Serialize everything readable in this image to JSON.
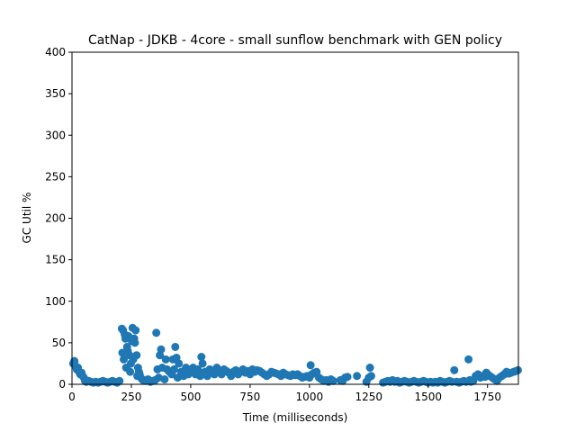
{
  "chart_data": {
    "type": "scatter",
    "title": "CatNap - JDKB - 4core -  small sunflow benchmark with GEN policy",
    "xlabel": "Time (milliseconds)",
    "ylabel": "GC Util %",
    "xlim": [
      0,
      1880
    ],
    "ylim": [
      0,
      400
    ],
    "xticks": [
      0,
      250,
      500,
      750,
      1000,
      1250,
      1500,
      1750
    ],
    "yticks": [
      0,
      50,
      100,
      150,
      200,
      250,
      300,
      350,
      400
    ],
    "grid": false,
    "legend": false,
    "marker_color": "#1f77b4",
    "series": [
      {
        "x": [
          5,
          10,
          15,
          20,
          25,
          30,
          35,
          40,
          45,
          50,
          55,
          60,
          70,
          80,
          90,
          100,
          110,
          120,
          130,
          140,
          150,
          160,
          170,
          180,
          190,
          200,
          210,
          212,
          215,
          218,
          222,
          225,
          228,
          232,
          235,
          238,
          242,
          245,
          248,
          252,
          255,
          258,
          262,
          265,
          268,
          272,
          275,
          278,
          282,
          285,
          290,
          295,
          300,
          310,
          320,
          330,
          340,
          350,
          355,
          360,
          365,
          370,
          375,
          380,
          390,
          395,
          400,
          410,
          420,
          425,
          430,
          435,
          440,
          445,
          450,
          460,
          470,
          480,
          490,
          500,
          510,
          520,
          530,
          540,
          545,
          550,
          560,
          570,
          580,
          590,
          600,
          610,
          620,
          630,
          640,
          650,
          660,
          670,
          680,
          690,
          700,
          710,
          720,
          730,
          740,
          750,
          760,
          770,
          780,
          790,
          800,
          810,
          820,
          830,
          840,
          850,
          860,
          870,
          880,
          890,
          900,
          910,
          920,
          930,
          940,
          950,
          960,
          970,
          980,
          990,
          1000,
          1005,
          1010,
          1020,
          1030,
          1040,
          1050,
          1060,
          1070,
          1080,
          1090,
          1100,
          1130,
          1140,
          1150,
          1160,
          1200,
          1240,
          1250,
          1255,
          1260,
          1310,
          1320,
          1330,
          1340,
          1350,
          1360,
          1370,
          1380,
          1390,
          1400,
          1410,
          1420,
          1430,
          1440,
          1450,
          1460,
          1470,
          1480,
          1490,
          1500,
          1510,
          1520,
          1530,
          1540,
          1550,
          1560,
          1570,
          1580,
          1590,
          1600,
          1610,
          1620,
          1630,
          1640,
          1650,
          1660,
          1670,
          1675,
          1680,
          1690,
          1700,
          1710,
          1720,
          1730,
          1740,
          1745,
          1750,
          1760,
          1770,
          1780,
          1790,
          1800,
          1810,
          1820,
          1830,
          1840,
          1850,
          1860,
          1870,
          1878
        ],
        "y": [
          25,
          28,
          22,
          18,
          20,
          15,
          12,
          14,
          10,
          8,
          4,
          3,
          4,
          3,
          2,
          3,
          2,
          3,
          4,
          3,
          2,
          3,
          4,
          3,
          2,
          4,
          67,
          38,
          65,
          30,
          60,
          55,
          20,
          45,
          40,
          58,
          35,
          15,
          25,
          52,
          68,
          30,
          55,
          50,
          65,
          35,
          10,
          20,
          15,
          12,
          8,
          6,
          5,
          4,
          6,
          3,
          4,
          5,
          62,
          18,
          8,
          35,
          42,
          20,
          6,
          30,
          18,
          15,
          12,
          30,
          18,
          45,
          32,
          8,
          25,
          15,
          10,
          20,
          12,
          15,
          20,
          12,
          18,
          10,
          33,
          25,
          15,
          10,
          18,
          15,
          12,
          20,
          15,
          12,
          18,
          16,
          14,
          10,
          15,
          17,
          12,
          15,
          18,
          14,
          16,
          12,
          18,
          15,
          17,
          16,
          14,
          12,
          10,
          12,
          15,
          14,
          13,
          12,
          10,
          14,
          12,
          11,
          10,
          12,
          11,
          12,
          10,
          8,
          9,
          10,
          8,
          23,
          12,
          14,
          15,
          8,
          6,
          4,
          5,
          3,
          6,
          4,
          5,
          4,
          8,
          9,
          10,
          3,
          8,
          20,
          10,
          2,
          3,
          4,
          3,
          5,
          3,
          4,
          2,
          3,
          4,
          3,
          2,
          3,
          4,
          3,
          2,
          3,
          4,
          3,
          2,
          3,
          2,
          3,
          2,
          4,
          3,
          2,
          3,
          4,
          3,
          17,
          3,
          2,
          3,
          4,
          3,
          30,
          5,
          3,
          4,
          10,
          12,
          8,
          10,
          9,
          14,
          12,
          10,
          8,
          6,
          4,
          8,
          10,
          12,
          15,
          13,
          14,
          15,
          16,
          17
        ]
      }
    ]
  }
}
